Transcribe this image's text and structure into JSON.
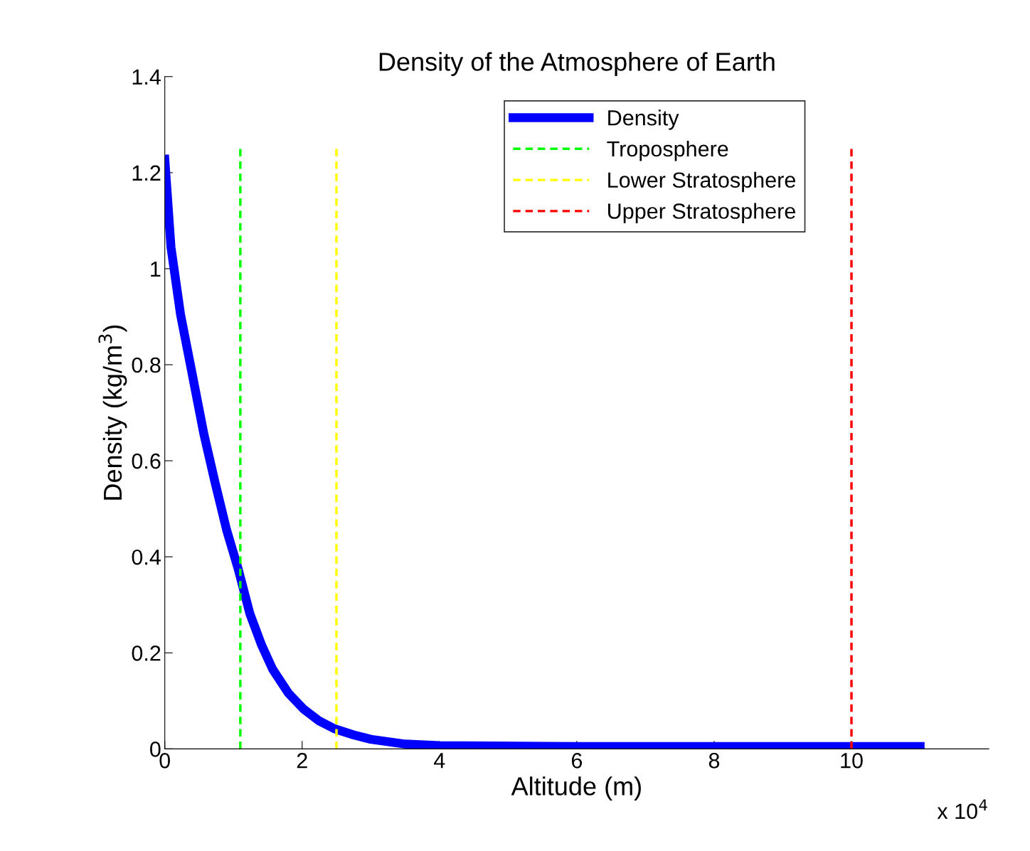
{
  "chart_data": {
    "type": "line",
    "title": "Density of the Atmosphere of Earth",
    "xlabel": "Altitude (m)",
    "ylabel": "Density (kg/m$^{3}$)",
    "annotations": [
      "x 10$^{4}$"
    ],
    "xlim": [
      0,
      12
    ],
    "xticks": [
      0,
      2,
      4,
      6,
      8,
      10
    ],
    "ylim": [
      0,
      1.4
    ],
    "yticks": [
      0,
      0.2,
      0.4,
      0.6,
      0.8,
      1,
      1.2,
      1.4
    ],
    "grid": false,
    "legend": "top right",
    "marker": "none",
    "series": [
      {
        "name": "Density",
        "color": "#0000ff",
        "line_style": "solid",
        "x": [
          0,
          0.09,
          0.23,
          0.4,
          0.57,
          0.73,
          0.9,
          1.07,
          1.24,
          1.41,
          1.57,
          1.8,
          2.02,
          2.25,
          2.47,
          2.75,
          3.0,
          3.5,
          4.0,
          6.0,
          8.0,
          10.0,
          11.0
        ],
        "values": [
          1.228,
          1.045,
          0.904,
          0.78,
          0.655,
          0.556,
          0.456,
          0.374,
          0.281,
          0.216,
          0.166,
          0.116,
          0.083,
          0.058,
          0.042,
          0.029,
          0.02,
          0.01,
          0.007,
          0.005,
          0.005,
          0.005,
          0.005
        ]
      },
      {
        "name": "Troposphere",
        "color": "#00ff00",
        "line_style": "dashed",
        "x": [
          1.1,
          1.1
        ],
        "values": [
          0,
          1.25
        ]
      },
      {
        "name": "Lower Stratosphere",
        "color": "#ffff00",
        "line_style": "dashed",
        "x": [
          2.5,
          2.5
        ],
        "values": [
          0,
          1.25
        ]
      },
      {
        "name": "Upper Stratosphere",
        "color": "#ff0000",
        "line_style": "dashed",
        "x": [
          10,
          10
        ],
        "values": [
          0,
          1.25
        ]
      }
    ]
  }
}
